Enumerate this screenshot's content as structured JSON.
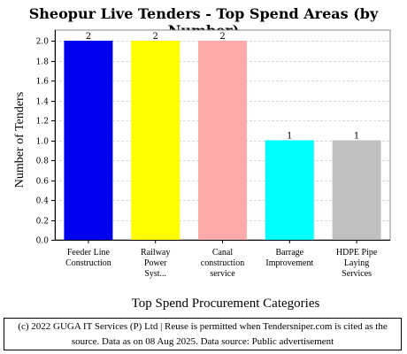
{
  "chart_data": {
    "type": "bar",
    "title": "Sheopur Live Tenders - Top Spend Areas (by Number)",
    "xlabel": "Top Spend Procurement Categories",
    "ylabel": "Number of Tenders",
    "categories": [
      [
        "Feeder Line",
        "Construction"
      ],
      [
        "Railway",
        "Power",
        "Syst..."
      ],
      [
        "Canal",
        "construction",
        "service"
      ],
      [
        "Barrage",
        "Improvement"
      ],
      [
        "HDPE Pipe",
        "Laying",
        "Services"
      ]
    ],
    "values": [
      2,
      2,
      2,
      1,
      1
    ],
    "data_labels": [
      "2",
      "2",
      "2",
      "1",
      "1"
    ],
    "colors": [
      "#0000ee",
      "#ffff00",
      "#ffaaaa",
      "#00ffff",
      "#c0c0c0"
    ],
    "yticks": [
      "0.0",
      "0.2",
      "0.4",
      "0.6",
      "0.8",
      "1.0",
      "1.2",
      "1.4",
      "1.6",
      "1.8",
      "2.0"
    ],
    "ylim": [
      0,
      2.0
    ],
    "grid": true,
    "legend": "none"
  },
  "footer": {
    "line1": "(c) 2022 GUGA IT Services (P) Ltd | Reuse is permitted when Tendersniper.com is cited as the",
    "line2": "source. Data as on 08 Aug 2025. Data source: Public advertisement"
  }
}
